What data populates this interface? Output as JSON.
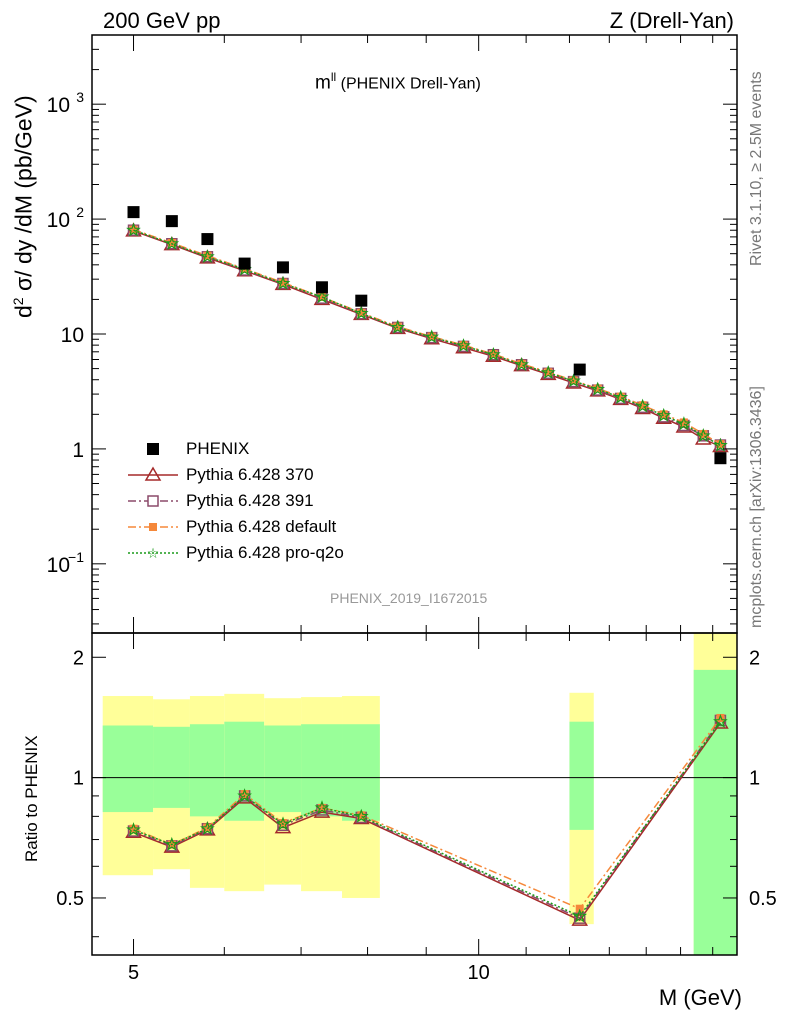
{
  "header": {
    "left": "200 GeV pp",
    "right": "Z (Drell-Yan)"
  },
  "side_labels": {
    "rivet": "Rivet 3.1.10, ≥ 2.5M events",
    "mcplots": "mcplots.cern.ch [arXiv:1306.3436]"
  },
  "chart_data": [
    {
      "type": "scatter",
      "title": "m^ll (PHENIX Drell-Yan)",
      "title_main": "m",
      "title_sup": "ll",
      "title_rest": " (PHENIX Drell-Yan)",
      "ylabel": "d² σ/ dy /dM (pb/GeV)",
      "ylabel_parts": {
        "pre": "d",
        "sup": "2",
        "post": " σ/ dy /dM (pb/GeV)"
      },
      "xlabel": "M (GeV)",
      "yscale": "log",
      "ylim": [
        0.025,
        4000
      ],
      "xlim": [
        4.6,
        16.8
      ],
      "y_ticks": [
        {
          "value": 1000,
          "label": "10",
          "sup": "3"
        },
        {
          "value": 100,
          "label": "10",
          "sup": "2"
        },
        {
          "value": 10,
          "label": "10",
          "sup": ""
        },
        {
          "value": 1,
          "label": "1",
          "sup": ""
        },
        {
          "value": 0.1,
          "label": "10",
          "sup": "−1"
        }
      ],
      "watermark": "PHENIX_2019_I1672015",
      "legend_position": "lower-left",
      "series": [
        {
          "name": "PHENIX",
          "color": "#000000",
          "marker": "filled-square",
          "x": [
            5.0,
            5.4,
            5.8,
            6.25,
            6.75,
            7.3,
            7.9,
            12.25,
            16.25
          ],
          "y": [
            115,
            96,
            67,
            41,
            38,
            25.5,
            19.5,
            4.9,
            0.83
          ]
        },
        {
          "name": "Pythia 6.428 370",
          "color": "#a52a2a",
          "marker": "open-triangle",
          "line": "solid",
          "x": [
            5.0,
            5.4,
            5.8,
            6.25,
            6.75,
            7.3,
            7.9,
            8.5,
            9.1,
            9.7,
            10.3,
            10.9,
            11.5,
            12.1,
            12.7,
            13.3,
            13.9,
            14.5,
            15.1,
            15.7,
            16.25
          ],
          "y": [
            79,
            60,
            46,
            35.5,
            27,
            20,
            14.8,
            11.2,
            9.1,
            7.6,
            6.4,
            5.3,
            4.45,
            3.75,
            3.2,
            2.7,
            2.25,
            1.85,
            1.55,
            1.22,
            1.05
          ]
        },
        {
          "name": "Pythia 6.428 391",
          "color": "#8b4a6a",
          "marker": "open-square",
          "line": "dashdot",
          "x": [
            5.0,
            5.4,
            5.8,
            6.25,
            6.75,
            7.3,
            7.9,
            8.5,
            9.1,
            9.7,
            10.3,
            10.9,
            11.5,
            12.1,
            12.7,
            13.3,
            13.9,
            14.5,
            15.1,
            15.7,
            16.25
          ],
          "y": [
            80,
            61,
            47,
            36,
            27.5,
            20.5,
            15,
            11.4,
            9.3,
            7.8,
            6.6,
            5.4,
            4.55,
            3.85,
            3.25,
            2.75,
            2.3,
            1.9,
            1.6,
            1.3,
            1.08
          ]
        },
        {
          "name": "Pythia 6.428 default",
          "color": "#f5883a",
          "marker": "filled-square-small",
          "line": "dashdot",
          "x": [
            5.0,
            5.4,
            5.8,
            6.25,
            6.75,
            7.3,
            7.9,
            8.5,
            9.1,
            9.7,
            10.3,
            10.9,
            11.5,
            12.1,
            12.7,
            13.3,
            13.9,
            14.5,
            15.1,
            15.7,
            16.25
          ],
          "y": [
            81,
            62,
            48,
            37,
            28,
            21,
            15.3,
            11.6,
            9.5,
            8.0,
            6.7,
            5.5,
            4.65,
            3.95,
            3.35,
            2.85,
            2.4,
            2.0,
            1.7,
            1.35,
            1.1
          ]
        },
        {
          "name": "Pythia 6.428 pro-q2o",
          "color": "#1a9a1a",
          "marker": "star",
          "line": "dotted",
          "x": [
            5.0,
            5.4,
            5.8,
            6.25,
            6.75,
            7.3,
            7.9,
            8.5,
            9.1,
            9.7,
            10.3,
            10.9,
            11.5,
            12.1,
            12.7,
            13.3,
            13.9,
            14.5,
            15.1,
            15.7,
            16.25
          ],
          "y": [
            80,
            61,
            47,
            36.5,
            27.5,
            21,
            15.1,
            11.4,
            9.4,
            7.9,
            6.6,
            5.4,
            4.6,
            3.9,
            3.3,
            2.8,
            2.35,
            1.95,
            1.65,
            1.3,
            1.07
          ]
        }
      ]
    },
    {
      "type": "scatter",
      "ylabel": "Ratio to PHENIX",
      "xlabel": "M (GeV)",
      "yscale": "log",
      "ylim": [
        0.36,
        2.3
      ],
      "xlim": [
        4.6,
        16.8
      ],
      "y_ticks": [
        {
          "value": 2,
          "label": "2"
        },
        {
          "value": 1,
          "label": "1"
        },
        {
          "value": 0.5,
          "label": "0.5"
        }
      ],
      "x_ticks": [
        {
          "value": 5,
          "label": "5"
        },
        {
          "value": 10,
          "label": "10"
        }
      ],
      "reference_line": 1,
      "uncertainty_bands": [
        {
          "x0": 4.7,
          "x1": 5.2,
          "stat": [
            0.82,
            1.35
          ],
          "total": [
            0.57,
            1.6
          ]
        },
        {
          "x0": 5.2,
          "x1": 5.6,
          "stat": [
            0.84,
            1.34
          ],
          "total": [
            0.59,
            1.57
          ]
        },
        {
          "x0": 5.6,
          "x1": 6.0,
          "stat": [
            0.8,
            1.36
          ],
          "total": [
            0.53,
            1.6
          ]
        },
        {
          "x0": 6.0,
          "x1": 6.5,
          "stat": [
            0.78,
            1.38
          ],
          "total": [
            0.52,
            1.62
          ]
        },
        {
          "x0": 6.5,
          "x1": 7.0,
          "stat": [
            0.82,
            1.35
          ],
          "total": [
            0.54,
            1.58
          ]
        },
        {
          "x0": 7.0,
          "x1": 7.6,
          "stat": [
            0.8,
            1.36
          ],
          "total": [
            0.52,
            1.59
          ]
        },
        {
          "x0": 7.6,
          "x1": 8.2,
          "stat": [
            0.78,
            1.36
          ],
          "total": [
            0.5,
            1.6
          ]
        },
        {
          "x0": 12.0,
          "x1": 12.6,
          "stat": [
            0.74,
            1.38
          ],
          "total": [
            0.43,
            1.63
          ]
        },
        {
          "x0": 15.4,
          "x1": 16.8,
          "stat": [
            0.36,
            1.86
          ],
          "total": [
            0.36,
            2.3
          ]
        }
      ],
      "series": [
        {
          "name": "Pythia 6.428 370",
          "color": "#a52a2a",
          "marker": "open-triangle",
          "line": "solid",
          "x": [
            5.0,
            5.4,
            5.8,
            6.25,
            6.75,
            7.3,
            7.9,
            12.25,
            16.25
          ],
          "y": [
            0.73,
            0.67,
            0.74,
            0.89,
            0.75,
            0.82,
            0.79,
            0.44,
            1.37
          ]
        },
        {
          "name": "Pythia 6.428 391",
          "color": "#8b4a6a",
          "marker": "open-square",
          "line": "dashdot",
          "x": [
            5.0,
            5.4,
            5.8,
            6.25,
            6.75,
            7.3,
            7.9,
            12.25,
            16.25
          ],
          "y": [
            0.735,
            0.675,
            0.745,
            0.9,
            0.76,
            0.83,
            0.795,
            0.445,
            1.39
          ]
        },
        {
          "name": "Pythia 6.428 default",
          "color": "#f5883a",
          "marker": "filled-square-small",
          "line": "dashdot",
          "x": [
            5.0,
            5.4,
            5.8,
            6.25,
            6.75,
            7.3,
            7.9,
            12.25,
            16.25
          ],
          "y": [
            0.745,
            0.68,
            0.75,
            0.91,
            0.77,
            0.84,
            0.805,
            0.47,
            1.41
          ]
        },
        {
          "name": "Pythia 6.428 pro-q2o",
          "color": "#1a9a1a",
          "marker": "star",
          "line": "dotted",
          "x": [
            5.0,
            5.4,
            5.8,
            6.25,
            6.75,
            7.3,
            7.9,
            12.25,
            16.25
          ],
          "y": [
            0.74,
            0.68,
            0.745,
            0.9,
            0.765,
            0.84,
            0.8,
            0.45,
            1.38
          ]
        }
      ]
    }
  ]
}
